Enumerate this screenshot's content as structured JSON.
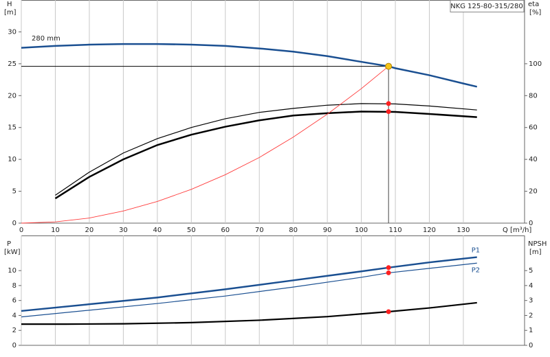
{
  "chart_data": [
    {
      "type": "line",
      "title": "NKG 125-80-315/280",
      "x_label": "Q [m³/h]",
      "y_label": "H",
      "y_unit": "[m]",
      "y2_label": "eta",
      "y2_unit": "[%]",
      "xlim": [
        0,
        148
      ],
      "xticks": [
        0,
        10,
        20,
        30,
        40,
        50,
        60,
        70,
        80,
        90,
        100,
        110,
        120,
        130
      ],
      "ylim": [
        0,
        35
      ],
      "yticks": [
        0,
        5,
        10,
        15,
        20,
        25,
        30
      ],
      "y2lim": [
        0,
        140
      ],
      "y2ticks": [
        0,
        20,
        40,
        60,
        80,
        100
      ],
      "grid": true,
      "annotation": "280 mm",
      "series": [
        {
          "color": "#1a4f91",
          "width": 2.5,
          "x": [
            0,
            10,
            20,
            30,
            40,
            50,
            60,
            70,
            80,
            90,
            100,
            108,
            110,
            120,
            130,
            134
          ],
          "values": [
            27.5,
            27.8,
            28.0,
            28.1,
            28.1,
            28.0,
            27.8,
            27.4,
            26.9,
            26.2,
            25.3,
            24.6,
            24.3,
            23.2,
            21.9,
            21.4
          ]
        },
        {
          "color": "#000000",
          "width": 1.2,
          "axis": "y2",
          "x": [
            10,
            20,
            30,
            40,
            50,
            60,
            70,
            80,
            90,
            100,
            110,
            120,
            134
          ],
          "values": [
            17.5,
            32,
            44,
            53,
            60,
            65.5,
            69.5,
            72,
            74,
            75,
            74.8,
            73.5,
            71
          ]
        },
        {
          "color": "#000000",
          "width": 2.5,
          "axis": "y2",
          "x": [
            10,
            20,
            30,
            40,
            50,
            60,
            70,
            80,
            90,
            100,
            110,
            120,
            134
          ],
          "values": [
            15.5,
            29,
            40,
            49,
            55.5,
            60.5,
            64.5,
            67.5,
            69,
            70,
            69.8,
            68.5,
            66.5
          ]
        },
        {
          "color": "#ff3b3b",
          "width": 0.9,
          "x": [
            0,
            10,
            20,
            30,
            40,
            50,
            60,
            70,
            80,
            90,
            100,
            108
          ],
          "values": [
            0,
            0.2,
            0.8,
            1.9,
            3.4,
            5.3,
            7.6,
            10.3,
            13.5,
            17.1,
            21.1,
            24.6
          ]
        }
      ],
      "operating_point": {
        "x": 108,
        "y": 24.6,
        "color": "#f5c518"
      },
      "markers": [
        {
          "x": 108,
          "y": 75,
          "axis": "y2",
          "color": "#ff2020"
        },
        {
          "x": 108,
          "y": 70,
          "axis": "y2",
          "color": "#ff2020"
        }
      ]
    },
    {
      "type": "line",
      "y_label": "P",
      "y_unit": "[kW]",
      "y2_label": "NPSH",
      "y2_unit": "[m]",
      "xlim": [
        0,
        148
      ],
      "xticks": [
        0,
        10,
        20,
        30,
        40,
        50,
        60,
        70,
        80,
        90,
        100,
        110,
        120,
        130
      ],
      "ylim": [
        0,
        14.7
      ],
      "yticks": [
        0,
        2,
        4,
        6,
        8,
        10
      ],
      "y2lim": [
        0,
        7.35
      ],
      "y2ticks": [
        0,
        1,
        2,
        3,
        4,
        5
      ],
      "grid": true,
      "series": [
        {
          "name": "P1",
          "color": "#1a4f91",
          "width": 2.5,
          "x": [
            0,
            20,
            40,
            60,
            80,
            100,
            108,
            120,
            134
          ],
          "values": [
            4.6,
            5.5,
            6.4,
            7.5,
            8.7,
            9.9,
            10.4,
            11.1,
            11.8
          ]
        },
        {
          "name": "P2",
          "color": "#1a4f91",
          "width": 1.2,
          "x": [
            0,
            20,
            40,
            60,
            80,
            100,
            108,
            120,
            134
          ],
          "values": [
            3.8,
            4.7,
            5.6,
            6.6,
            7.8,
            9.1,
            9.7,
            10.3,
            11.0
          ]
        },
        {
          "color": "#000000",
          "width": 2.2,
          "axis": "y2",
          "x": [
            0,
            13,
            30,
            50,
            70,
            90,
            108,
            120,
            134
          ],
          "values": [
            1.42,
            1.42,
            1.44,
            1.52,
            1.68,
            1.92,
            2.25,
            2.5,
            2.85
          ]
        }
      ],
      "markers": [
        {
          "x": 108,
          "y": 10.4,
          "color": "#ff2020"
        },
        {
          "x": 108,
          "y": 9.7,
          "color": "#ff2020"
        },
        {
          "x": 108,
          "y": 2.25,
          "axis": "y2",
          "color": "#ff2020"
        }
      ]
    }
  ]
}
